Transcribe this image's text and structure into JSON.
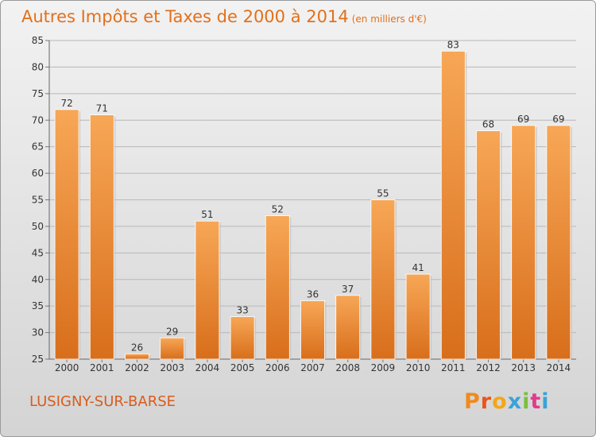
{
  "header": {
    "title": "Autres Impôts et Taxes de 2000 à 2014",
    "subtitle": "(en milliers d'€)"
  },
  "footer": {
    "commune": "LUSIGNY-SUR-BARSE",
    "logo": [
      "P",
      "r",
      "o",
      "x",
      "i",
      "t",
      "i"
    ]
  },
  "colors": {
    "title": "#e2701a",
    "bar_light": "#f7a756",
    "bar_dark": "#d86e1b",
    "logo": [
      "#f08a1c",
      "#e8541a",
      "#f2a619",
      "#3aa3d9",
      "#7bbf3e",
      "#e23a8c",
      "#3aa3d9"
    ]
  },
  "chart_data": {
    "type": "bar",
    "title": "Autres Impôts et Taxes de 2000 à 2014",
    "subtitle": "(en milliers d'€)",
    "categories": [
      "2000",
      "2001",
      "2002",
      "2003",
      "2004",
      "2005",
      "2006",
      "2007",
      "2008",
      "2009",
      "2010",
      "2011",
      "2012",
      "2013",
      "2014"
    ],
    "values": [
      72,
      71,
      26,
      29,
      51,
      33,
      52,
      36,
      37,
      55,
      41,
      83,
      68,
      69,
      69
    ],
    "ylim": [
      25,
      85
    ],
    "yticks": [
      25,
      30,
      35,
      40,
      45,
      50,
      55,
      60,
      65,
      70,
      75,
      80,
      85
    ],
    "grid": true
  }
}
